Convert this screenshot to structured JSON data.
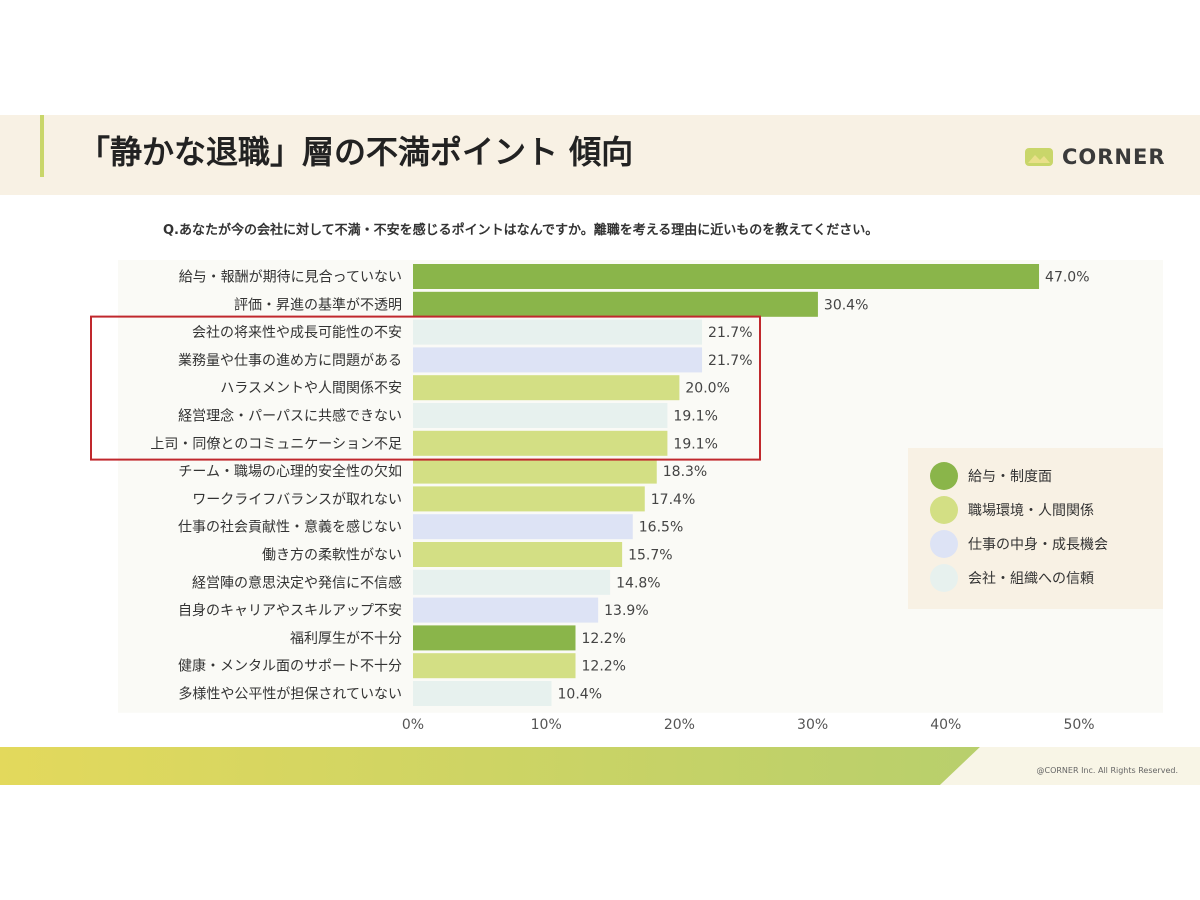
{
  "header": {
    "title": "「静かな退職」層の不満ポイント 傾向",
    "logo_text": "CORNER"
  },
  "question": "Q.あなたが今の会社に対して不満・不安を感じるポイントはなんですか。離職を考える理由に近いものを教えてください。",
  "colors": {
    "salary": "#8ab54a",
    "environment": "#d3df84",
    "work": "#dde3f5",
    "trust": "#e7f1ee",
    "highlight": "#c0282d",
    "header_bg": "#f8f1e4",
    "footer_gradient": [
      "#e3d95c",
      "#b8cf6c"
    ]
  },
  "legend": [
    {
      "label": "給与・制度面",
      "group": "salary"
    },
    {
      "label": "職場環境・人間関係",
      "group": "environment"
    },
    {
      "label": "仕事の中身・成長機会",
      "group": "work"
    },
    {
      "label": "会社・組織への信頼",
      "group": "trust"
    }
  ],
  "highlight_rows": [
    2,
    6
  ],
  "chart_data": {
    "type": "bar",
    "orientation": "horizontal",
    "xlim": [
      0,
      50
    ],
    "xticks": [
      "0%",
      "10%",
      "20%",
      "30%",
      "40%",
      "50%"
    ],
    "grid": false,
    "legend_position": "right",
    "categories": [
      "給与・報酬が期待に見合っていない",
      "評価・昇進の基準が不透明",
      "会社の将来性や成長可能性の不安",
      "業務量や仕事の進め方に問題がある",
      "ハラスメントや人間関係不安",
      "経営理念・パーパスに共感できない",
      "上司・同僚とのコミュニケーション不足",
      "チーム・職場の心理的安全性の欠如",
      "ワークライフバランスが取れない",
      "仕事の社会貢献性・意義を感じない",
      "働き方の柔軟性がない",
      "経営陣の意思決定や発信に不信感",
      "自身のキャリアやスキルアップ不安",
      "福利厚生が不十分",
      "健康・メンタル面のサポート不十分",
      "多様性や公平性が担保されていない"
    ],
    "values": [
      47.0,
      30.4,
      21.7,
      21.7,
      20.0,
      19.1,
      19.1,
      18.3,
      17.4,
      16.5,
      15.7,
      14.8,
      13.9,
      12.2,
      12.2,
      10.4
    ],
    "value_labels": [
      "47.0%",
      "30.4%",
      "21.7%",
      "21.7%",
      "20.0%",
      "19.1%",
      "19.1%",
      "18.3%",
      "17.4%",
      "16.5%",
      "15.7%",
      "14.8%",
      "13.9%",
      "12.2%",
      "12.2%",
      "10.4%"
    ],
    "groups": [
      "salary",
      "salary",
      "trust",
      "work",
      "environment",
      "trust",
      "environment",
      "environment",
      "environment",
      "work",
      "environment",
      "trust",
      "work",
      "salary",
      "environment",
      "trust"
    ]
  },
  "footer": {
    "copyright": "@CORNER Inc. All Rights Reserved."
  }
}
